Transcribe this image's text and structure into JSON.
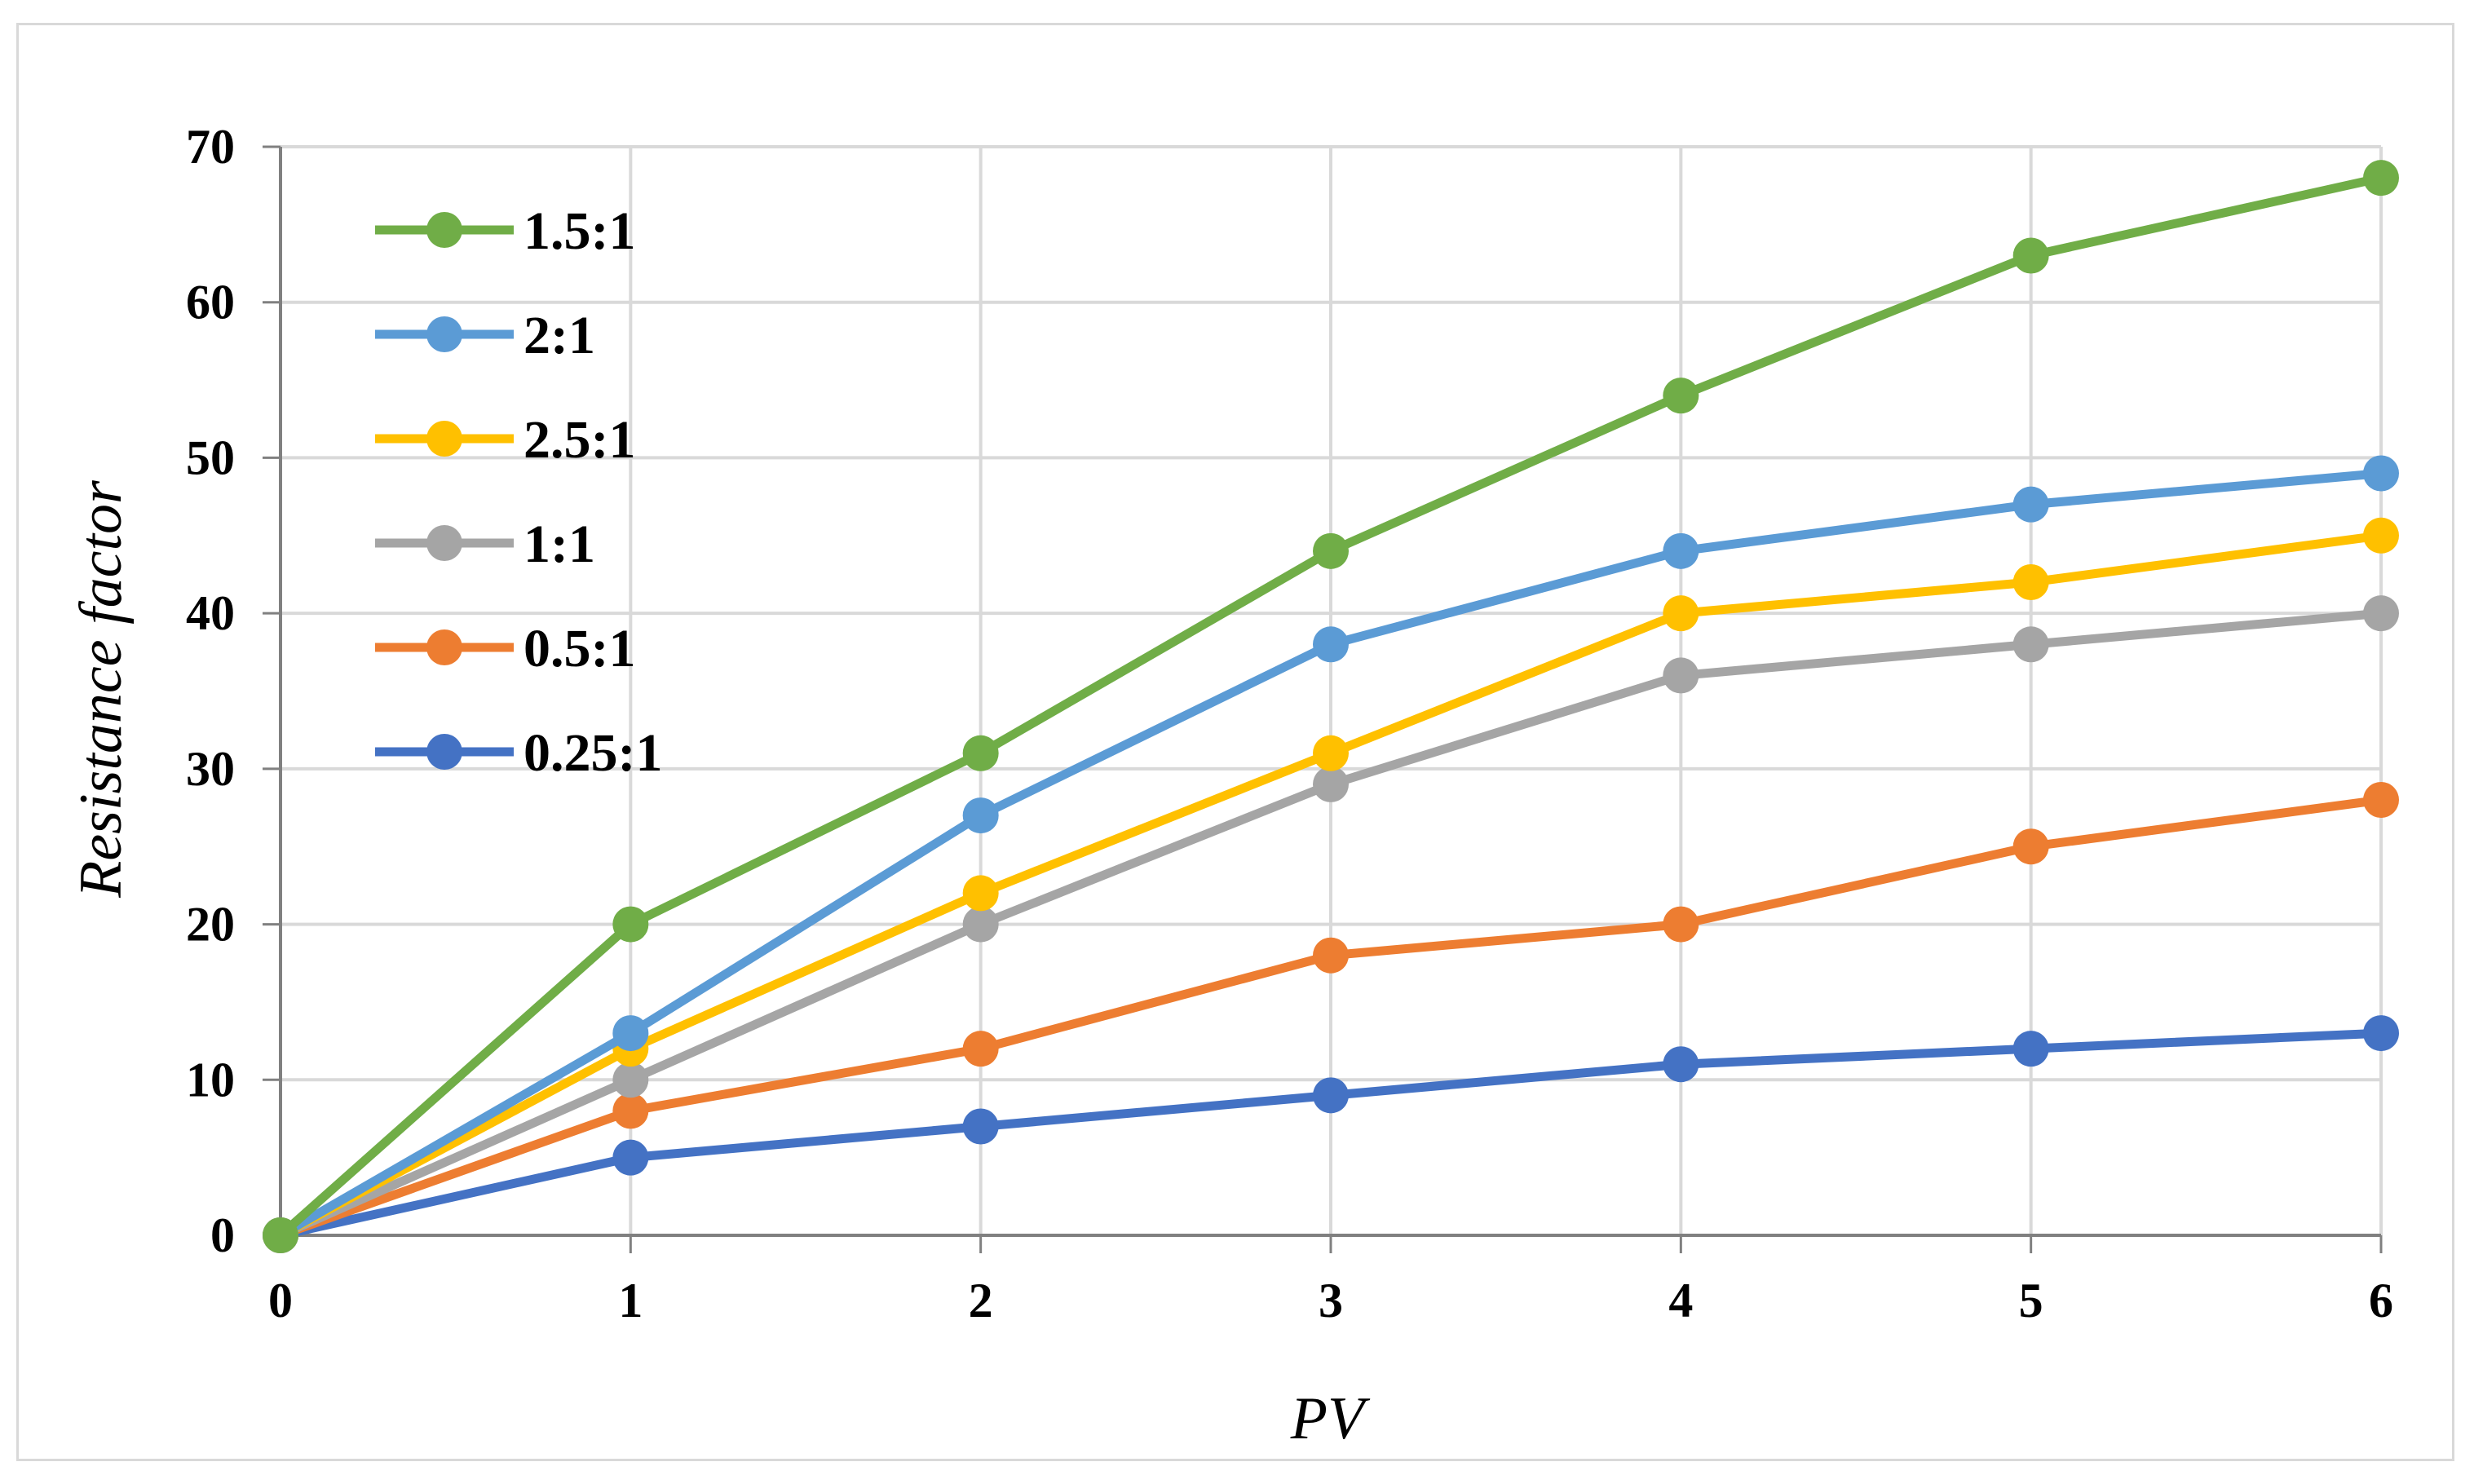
{
  "chart_data": {
    "type": "line",
    "title": "",
    "xlabel": "PV",
    "ylabel": "Resistance factor",
    "x": [
      0,
      1,
      2,
      3,
      4,
      5,
      6
    ],
    "xlim": [
      0,
      6
    ],
    "ylim": [
      0,
      70
    ],
    "x_ticks": [
      0,
      1,
      2,
      3,
      4,
      5,
      6
    ],
    "y_ticks": [
      0,
      10,
      20,
      30,
      40,
      50,
      60,
      70
    ],
    "grid": true,
    "legend_position": "top-left",
    "series": [
      {
        "name": "1.5:1",
        "color": "#70ad47",
        "values": [
          0,
          20,
          31,
          44,
          54,
          63,
          68
        ]
      },
      {
        "name": "2:1",
        "color": "#5b9bd5",
        "values": [
          0,
          13,
          27,
          38,
          44,
          47,
          49
        ]
      },
      {
        "name": "2.5:1",
        "color": "#ffc000",
        "values": [
          0,
          12,
          22,
          31,
          40,
          42,
          45
        ]
      },
      {
        "name": "1:1",
        "color": "#a5a5a5",
        "values": [
          0,
          10,
          20,
          29,
          36,
          38,
          40
        ]
      },
      {
        "name": "0.5:1",
        "color": "#ed7d31",
        "values": [
          0,
          8,
          12,
          18,
          20,
          25,
          28
        ]
      },
      {
        "name": "0.25:1",
        "color": "#4472c4",
        "values": [
          0,
          5,
          7,
          9,
          11,
          12,
          13
        ]
      }
    ]
  }
}
